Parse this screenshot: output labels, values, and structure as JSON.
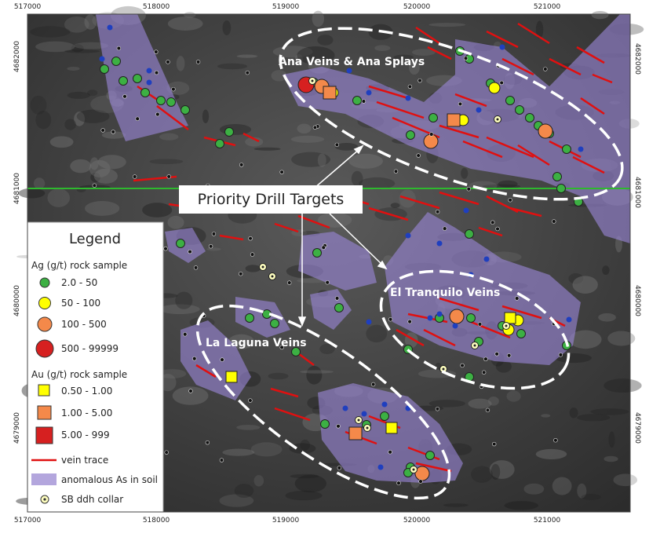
{
  "axes": {
    "x_ticks_top": [
      517000,
      518000,
      519000,
      520000,
      521000
    ],
    "x_ticks_bottom": [
      517000,
      518000,
      519000,
      520000,
      521000
    ],
    "y_ticks_left": [
      4682000,
      4681000,
      4680000,
      4679000
    ],
    "y_ticks_right": [
      4682000,
      4681000,
      4680000,
      4679000
    ]
  },
  "labels": {
    "ana": "Ana Veins & Ana Splays",
    "tranquilo": "El Tranquilo Veins",
    "laguna": "La Laguna Veins",
    "priority": "Priority Drill Targets"
  },
  "legend": {
    "title": "Legend",
    "ag_title": "Ag (g/t) rock sample",
    "ag": [
      "2.0 - 50",
      "50 - 100",
      "100 - 500",
      "500 - 99999"
    ],
    "au_title": "Au (g/t) rock sample",
    "au": [
      "0.50 - 1.00",
      "1.00 - 5.00",
      "5.00 - 999"
    ],
    "vein": "vein trace",
    "soil": "anomalous As in soil",
    "collar": "SB ddh collar"
  }
}
